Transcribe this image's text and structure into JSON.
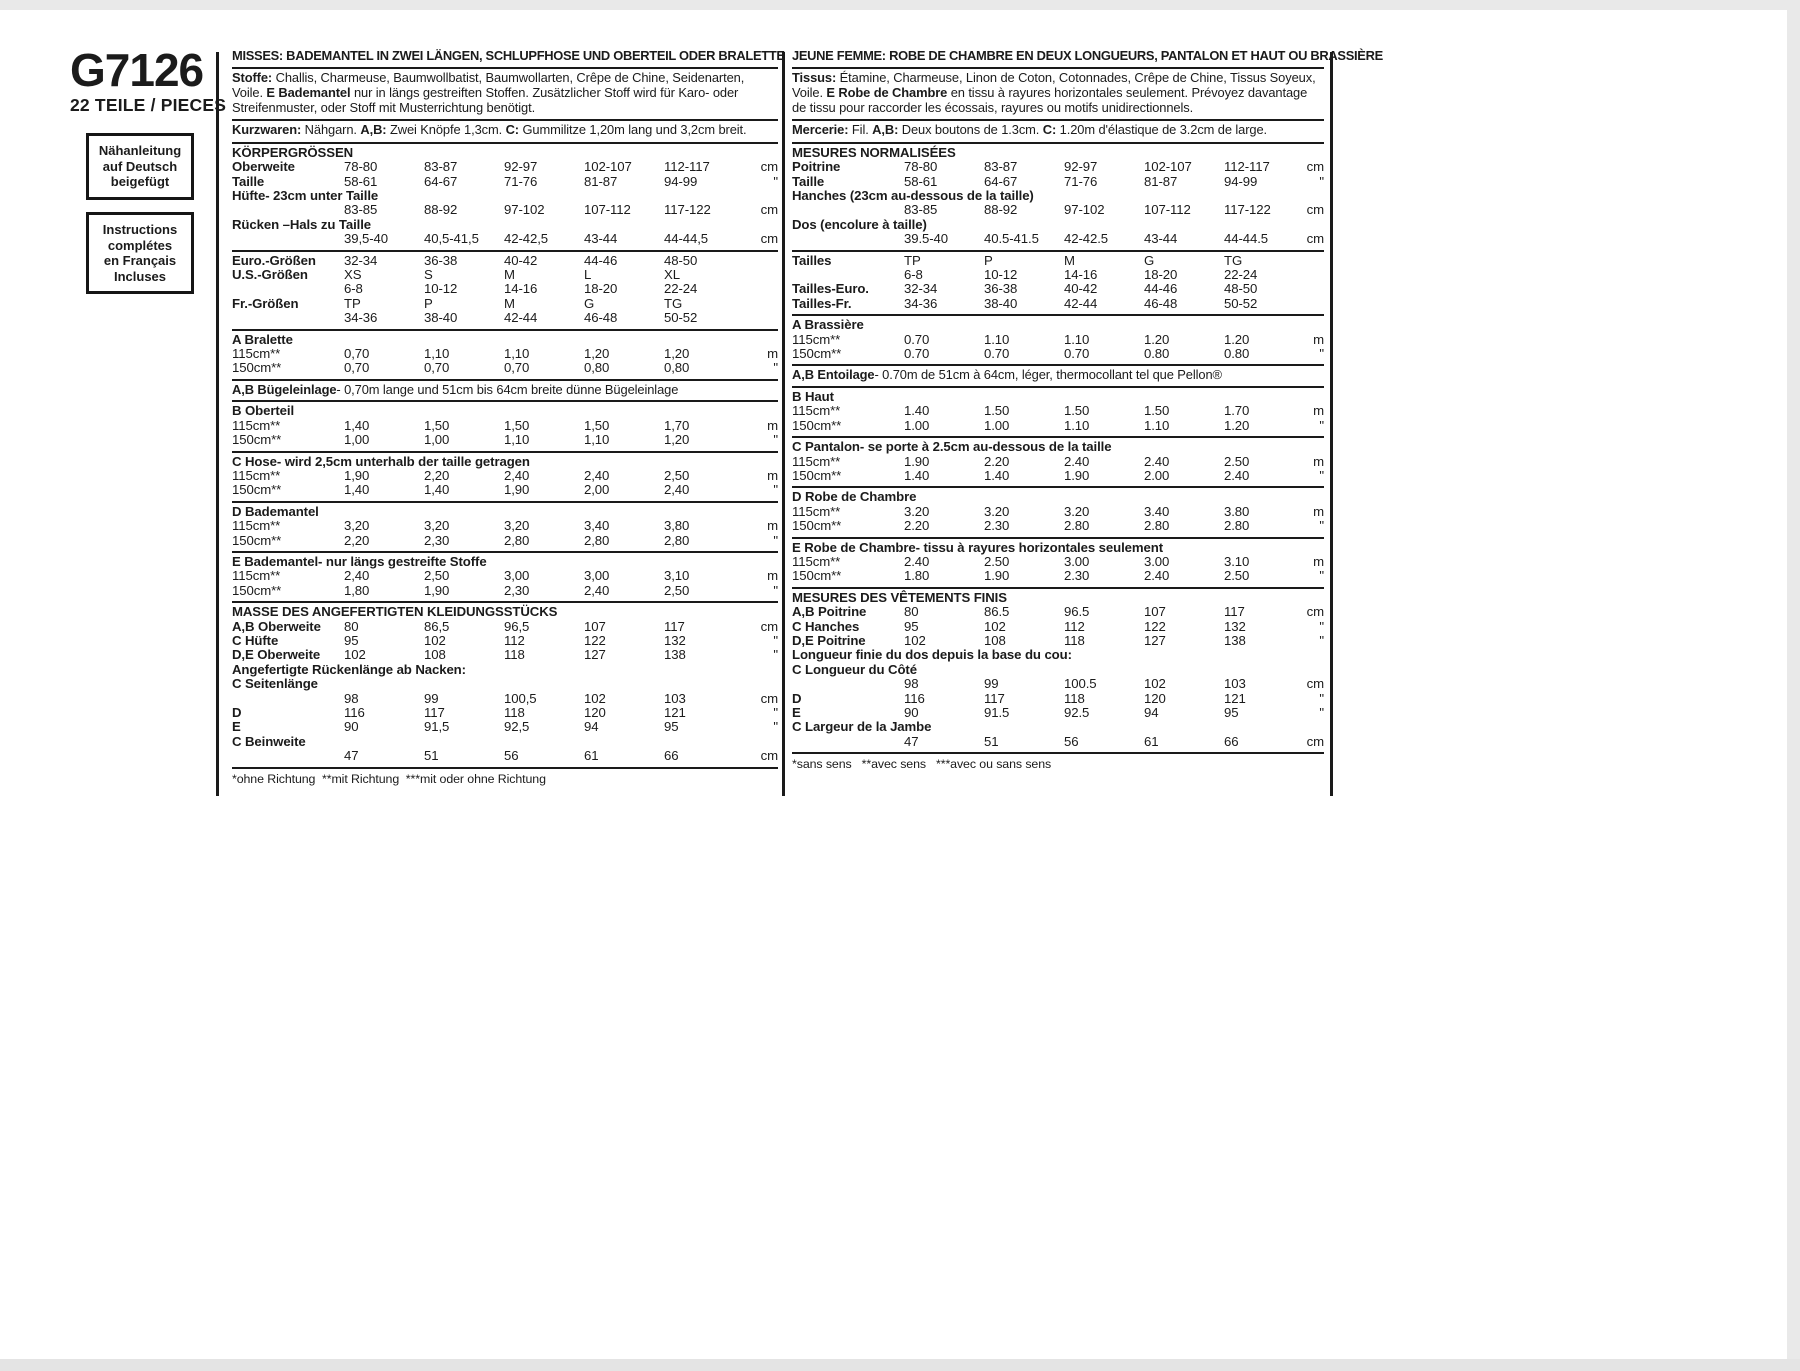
{
  "left_panel": {
    "number": "G7126",
    "pieces": "22 TEILE / PIECES",
    "box_de": [
      "Nähanleitung",
      "auf Deutsch",
      "beigefügt"
    ],
    "box_fr": [
      "Instructions",
      "complétes",
      "en Français",
      "Incluses"
    ]
  },
  "columns": [
    {
      "lang": "german",
      "blocks": [
        {
          "kind": "title",
          "text": "MISSES: BADEMANTEL IN ZWEI LÄNGEN, SCHLUPFHOSE UND OBERTEIL ODER BRALETTE"
        },
        {
          "kind": "para",
          "parts": [
            {
              "text": "Stoffe:",
              "bold": true
            },
            {
              "text": " Challis, Charmeuse, Baumwollbatist, Baumwollarten, Crêpe de Chine, Seidenarten, Voile. "
            },
            {
              "text": "E Bademantel",
              "bold": true
            },
            {
              "text": " nur in längs gestreiften Stoffen. Zusätzlicher Stoff wird für Karo- oder Streifenmuster, oder Stoff mit Musterrichtung benötigt."
            }
          ]
        },
        {
          "kind": "para",
          "nowrap": true,
          "parts": [
            {
              "text": "Kurzwaren:",
              "bold": true
            },
            {
              "text": " Nähgarn. "
            },
            {
              "text": "A,B:",
              "bold": true
            },
            {
              "text": " Zwei Knöpfe 1,3cm. "
            },
            {
              "text": "C:",
              "bold": true
            },
            {
              "text": " Gummilitze 1,20m lang und 3,2cm breit."
            }
          ]
        },
        {
          "kind": "table",
          "heading": "KÖRPERGRÖSSEN",
          "rows": [
            {
              "label": "Oberweite",
              "values": [
                "78-80",
                "83-87",
                "92-97",
                "102-107",
                "112-117"
              ],
              "unit": "cm"
            },
            {
              "label": "Taille",
              "values": [
                "58-61",
                "64-67",
                "71-76",
                "81-87",
                "94-99"
              ],
              "unit": "\""
            },
            {
              "full_label": "Hüfte- 23cm unter Taille"
            },
            {
              "label": "",
              "values": [
                "83-85",
                "88-92",
                "97-102",
                "107-112",
                "117-122"
              ],
              "unit": "cm"
            },
            {
              "full_label": "Rücken –Hals zu Taille"
            },
            {
              "label": "",
              "values": [
                "39,5-40",
                "40,5-41,5",
                "42-42,5",
                "43-44",
                "44-44,5"
              ],
              "unit": "cm"
            }
          ]
        },
        {
          "kind": "table",
          "rows": [
            {
              "label": "Euro.-Größen",
              "values": [
                "32-34",
                "36-38",
                "40-42",
                "44-46",
                "48-50"
              ]
            },
            {
              "label": "U.S.-Größen",
              "values": [
                "XS",
                "S",
                "M",
                "L",
                "XL"
              ]
            },
            {
              "label": "",
              "values": [
                "6-8",
                "10-12",
                "14-16",
                "18-20",
                "22-24"
              ]
            },
            {
              "label": "Fr.-Größen",
              "values": [
                "TP",
                "P",
                "M",
                "G",
                "TG"
              ]
            },
            {
              "label": "",
              "values": [
                "34-36",
                "38-40",
                "42-44",
                "46-48",
                "50-52"
              ]
            }
          ]
        },
        {
          "kind": "table",
          "heading": "A Bralette",
          "rows": [
            {
              "label": "115cm**",
              "plain": true,
              "values": [
                "0,70",
                "1,10",
                "1,10",
                "1,20",
                "1,20"
              ],
              "unit": "m"
            },
            {
              "label": "150cm**",
              "plain": true,
              "values": [
                "0,70",
                "0,70",
                "0,70",
                "0,80",
                "0,80"
              ],
              "unit": "\""
            }
          ]
        },
        {
          "kind": "note",
          "parts": [
            {
              "text": "A,B Bügeleinlage",
              "bold": true
            },
            {
              "text": "- 0,70m lange und 51cm bis 64cm breite dünne Bügeleinlage"
            }
          ]
        },
        {
          "kind": "table",
          "heading": "B Oberteil",
          "rows": [
            {
              "label": "115cm**",
              "plain": true,
              "values": [
                "1,40",
                "1,50",
                "1,50",
                "1,50",
                "1,70"
              ],
              "unit": "m"
            },
            {
              "label": "150cm**",
              "plain": true,
              "values": [
                "1,00",
                "1,00",
                "1,10",
                "1,10",
                "1,20"
              ],
              "unit": "\""
            }
          ]
        },
        {
          "kind": "table",
          "heading": "C Hose- wird 2,5cm unterhalb der taille getragen",
          "rows": [
            {
              "label": "115cm**",
              "plain": true,
              "values": [
                "1,90",
                "2,20",
                "2,40",
                "2,40",
                "2,50"
              ],
              "unit": "m"
            },
            {
              "label": "150cm**",
              "plain": true,
              "values": [
                "1,40",
                "1,40",
                "1,90",
                "2,00",
                "2,40"
              ],
              "unit": "\""
            }
          ]
        },
        {
          "kind": "table",
          "heading": "D Bademantel",
          "rows": [
            {
              "label": "115cm**",
              "plain": true,
              "values": [
                "3,20",
                "3,20",
                "3,20",
                "3,40",
                "3,80"
              ],
              "unit": "m"
            },
            {
              "label": "150cm**",
              "plain": true,
              "values": [
                "2,20",
                "2,30",
                "2,80",
                "2,80",
                "2,80"
              ],
              "unit": "\""
            }
          ]
        },
        {
          "kind": "table",
          "heading": "E Bademantel- nur längs gestreifte Stoffe",
          "rows": [
            {
              "label": "115cm**",
              "plain": true,
              "values": [
                "2,40",
                "2,50",
                "3,00",
                "3,00",
                "3,10"
              ],
              "unit": "m"
            },
            {
              "label": "150cm**",
              "plain": true,
              "values": [
                "1,80",
                "1,90",
                "2,30",
                "2,40",
                "2,50"
              ],
              "unit": "\""
            }
          ]
        },
        {
          "kind": "table",
          "heading": "MASSE DES ANGEFERTIGTEN KLEIDUNGSSTÜCKS",
          "rows": [
            {
              "label": "A,B Oberweite",
              "values": [
                "80",
                "86,5",
                "96,5",
                "107",
                "117"
              ],
              "unit": "cm"
            },
            {
              "label": "C Hüfte",
              "values": [
                "95",
                "102",
                "112",
                "122",
                "132"
              ],
              "unit": "\""
            },
            {
              "label": "D,E Oberweite",
              "values": [
                "102",
                "108",
                "118",
                "127",
                "138"
              ],
              "unit": "\""
            },
            {
              "full_label": "Angefertigte Rückenlänge ab Nacken:"
            },
            {
              "full_label": "C Seitenlänge"
            },
            {
              "label": "",
              "values": [
                "98",
                "99",
                "100,5",
                "102",
                "103"
              ],
              "unit": "cm"
            },
            {
              "label": "D",
              "values": [
                "116",
                "117",
                "118",
                "120",
                "121"
              ],
              "unit": "\""
            },
            {
              "label": "E",
              "values": [
                "90",
                "91,5",
                "92,5",
                "94",
                "95"
              ],
              "unit": "\""
            },
            {
              "full_label": "C Beinweite"
            },
            {
              "label": "",
              "values": [
                "47",
                "51",
                "56",
                "61",
                "66"
              ],
              "unit": "cm"
            }
          ]
        },
        {
          "kind": "footnote",
          "text": "*ohne Richtung  **mit Richtung  ***mit oder ohne Richtung"
        }
      ]
    },
    {
      "lang": "french",
      "blocks": [
        {
          "kind": "title",
          "text": "JEUNE FEMME: ROBE DE CHAMBRE EN DEUX LONGUEURS, PANTALON ET HAUT OU BRASSIÈRE"
        },
        {
          "kind": "para",
          "parts": [
            {
              "text": "Tissus:",
              "bold": true
            },
            {
              "text": " Étamine, Charmeuse, Linon de Coton, Cotonnades, Crêpe de Chine, Tissus Soyeux, Voile. "
            },
            {
              "text": "E Robe de Chambre",
              "bold": true
            },
            {
              "text": " en tissu à rayures horizontales seulement. Prévoyez davantage de tissu pour raccorder les écossais, rayures ou motifs unidirectionnels."
            }
          ]
        },
        {
          "kind": "para",
          "nowrap": true,
          "parts": [
            {
              "text": "Mercerie:",
              "bold": true
            },
            {
              "text": " Fil. "
            },
            {
              "text": "A,B:",
              "bold": true
            },
            {
              "text": " Deux boutons de 1.3cm. "
            },
            {
              "text": "C:",
              "bold": true
            },
            {
              "text": " 1.20m d'élastique de 3.2cm de large."
            }
          ]
        },
        {
          "kind": "table",
          "heading": "MESURES NORMALISÉES",
          "rows": [
            {
              "label": "Poitrine",
              "values": [
                "78-80",
                "83-87",
                "92-97",
                "102-107",
                "112-117"
              ],
              "unit": "cm"
            },
            {
              "label": "Taille",
              "values": [
                "58-61",
                "64-67",
                "71-76",
                "81-87",
                "94-99"
              ],
              "unit": "\""
            },
            {
              "full_label": "Hanches (23cm au-dessous de la taille)"
            },
            {
              "label": "",
              "values": [
                "83-85",
                "88-92",
                "97-102",
                "107-112",
                "117-122"
              ],
              "unit": "cm"
            },
            {
              "full_label": "Dos (encolure à taille)"
            },
            {
              "label": "",
              "values": [
                "39.5-40",
                "40.5-41.5",
                "42-42.5",
                "43-44",
                "44-44.5"
              ],
              "unit": "cm"
            }
          ]
        },
        {
          "kind": "table",
          "rows": [
            {
              "label": "Tailles",
              "values": [
                "TP",
                "P",
                "M",
                "G",
                "TG"
              ]
            },
            {
              "label": "",
              "values": [
                "6-8",
                "10-12",
                "14-16",
                "18-20",
                "22-24"
              ]
            },
            {
              "label": "Tailles-Euro.",
              "values": [
                "32-34",
                "36-38",
                "40-42",
                "44-46",
                "48-50"
              ]
            },
            {
              "label": "Tailles-Fr.",
              "values": [
                "34-36",
                "38-40",
                "42-44",
                "46-48",
                "50-52"
              ]
            }
          ]
        },
        {
          "kind": "table",
          "heading": "A Brassière",
          "rows": [
            {
              "label": "115cm**",
              "plain": true,
              "values": [
                "0.70",
                "1.10",
                "1.10",
                "1.20",
                "1.20"
              ],
              "unit": "m"
            },
            {
              "label": "150cm**",
              "plain": true,
              "values": [
                "0.70",
                "0.70",
                "0.70",
                "0.80",
                "0.80"
              ],
              "unit": "\""
            }
          ]
        },
        {
          "kind": "note",
          "parts": [
            {
              "text": "A,B Entoilage",
              "bold": true
            },
            {
              "text": "- 0.70m de 51cm à 64cm, léger, thermocollant tel que Pellon®"
            }
          ]
        },
        {
          "kind": "table",
          "heading": "B Haut",
          "rows": [
            {
              "label": "115cm**",
              "plain": true,
              "values": [
                "1.40",
                "1.50",
                "1.50",
                "1.50",
                "1.70"
              ],
              "unit": "m"
            },
            {
              "label": "150cm**",
              "plain": true,
              "values": [
                "1.00",
                "1.00",
                "1.10",
                "1.10",
                "1.20"
              ],
              "unit": "\""
            }
          ]
        },
        {
          "kind": "table",
          "heading": "C Pantalon- se porte à 2.5cm au-dessous de la taille",
          "rows": [
            {
              "label": "115cm**",
              "plain": true,
              "values": [
                "1.90",
                "2.20",
                "2.40",
                "2.40",
                "2.50"
              ],
              "unit": "m"
            },
            {
              "label": "150cm**",
              "plain": true,
              "values": [
                "1.40",
                "1.40",
                "1.90",
                "2.00",
                "2.40"
              ],
              "unit": "\""
            }
          ]
        },
        {
          "kind": "table",
          "heading": "D Robe de Chambre",
          "rows": [
            {
              "label": "115cm**",
              "plain": true,
              "values": [
                "3.20",
                "3.20",
                "3.20",
                "3.40",
                "3.80"
              ],
              "unit": "m"
            },
            {
              "label": "150cm**",
              "plain": true,
              "values": [
                "2.20",
                "2.30",
                "2.80",
                "2.80",
                "2.80"
              ],
              "unit": "\""
            }
          ]
        },
        {
          "kind": "table",
          "heading": "E Robe de Chambre- tissu à rayures horizontales seulement",
          "rows": [
            {
              "label": "115cm**",
              "plain": true,
              "values": [
                "2.40",
                "2.50",
                "3.00",
                "3.00",
                "3.10"
              ],
              "unit": "m"
            },
            {
              "label": "150cm**",
              "plain": true,
              "values": [
                "1.80",
                "1.90",
                "2.30",
                "2.40",
                "2.50"
              ],
              "unit": "\""
            }
          ]
        },
        {
          "kind": "table",
          "heading": "MESURES DES VÊTEMENTS FINIS",
          "rows": [
            {
              "label": "A,B Poitrine",
              "values": [
                "80",
                "86.5",
                "96.5",
                "107",
                "117"
              ],
              "unit": "cm"
            },
            {
              "label": "C Hanches",
              "values": [
                "95",
                "102",
                "112",
                "122",
                "132"
              ],
              "unit": "\""
            },
            {
              "label": "D,E Poitrine",
              "values": [
                "102",
                "108",
                "118",
                "127",
                "138"
              ],
              "unit": "\""
            },
            {
              "full_label": "Longueur finie du dos depuis la base du cou:"
            },
            {
              "full_label": "C Longueur du Côté"
            },
            {
              "label": "",
              "values": [
                "98",
                "99",
                "100.5",
                "102",
                "103"
              ],
              "unit": "cm"
            },
            {
              "label": "D",
              "values": [
                "116",
                "117",
                "118",
                "120",
                "121"
              ],
              "unit": "\""
            },
            {
              "label": "E",
              "values": [
                "90",
                "91.5",
                "92.5",
                "94",
                "95"
              ],
              "unit": "\""
            },
            {
              "full_label": "C Largeur de la Jambe"
            },
            {
              "label": "",
              "values": [
                "47",
                "51",
                "56",
                "61",
                "66"
              ],
              "unit": "cm"
            }
          ]
        },
        {
          "kind": "footnote",
          "text": "*sans sens   **avec sens   ***avec ou sans sens"
        }
      ]
    }
  ]
}
